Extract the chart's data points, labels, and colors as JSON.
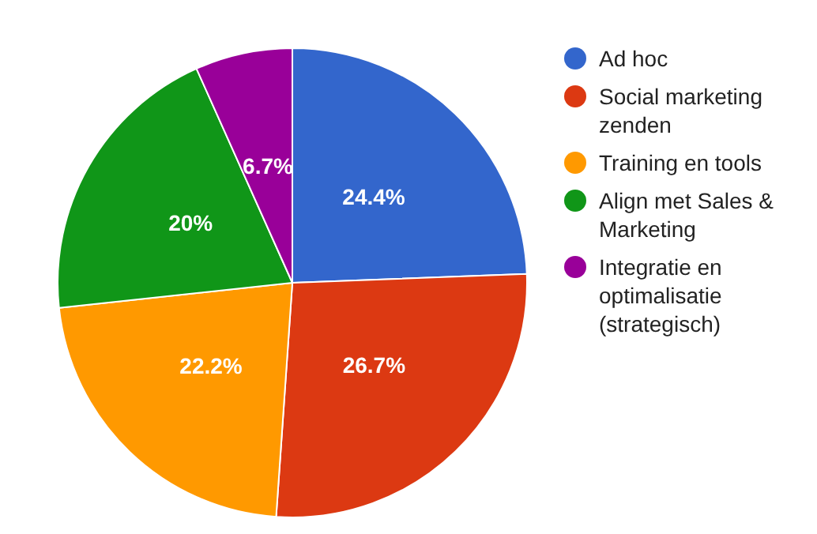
{
  "chart_data": {
    "type": "pie",
    "categories": [
      "Ad hoc",
      "Social marketing zenden",
      "Training en tools",
      "Align met Sales & Marketing",
      "Integratie en optimalisatie (strategisch)"
    ],
    "values": [
      24.4,
      26.7,
      22.2,
      20,
      6.7
    ],
    "value_labels": [
      "24.4%",
      "26.7%",
      "22.2%",
      "20%",
      "6.7%"
    ],
    "colors": [
      "#3366cc",
      "#dc3912",
      "#ff9900",
      "#109618",
      "#990099"
    ],
    "legend": "right"
  }
}
